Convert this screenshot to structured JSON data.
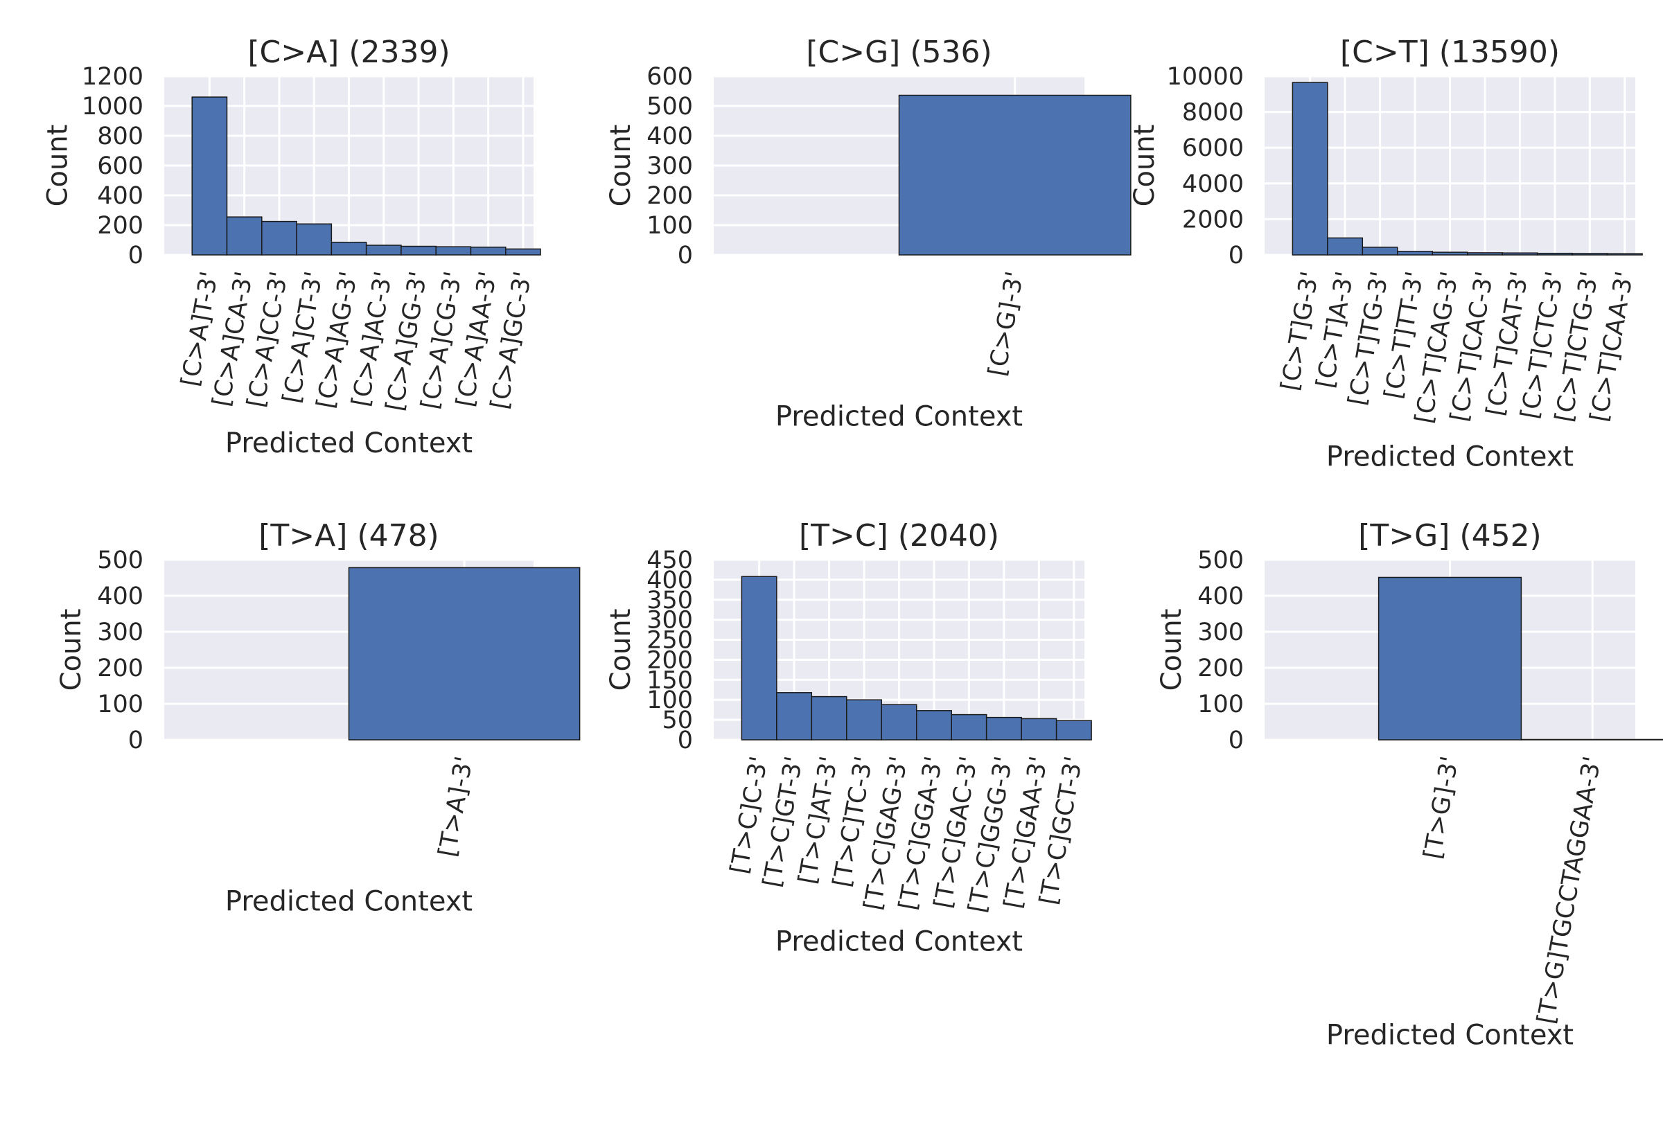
{
  "chart_data": [
    {
      "type": "bar",
      "title": "[C>A] (2339)",
      "xlabel": "Predicted Context",
      "ylabel": "Count",
      "ylim": [
        0,
        1200
      ],
      "yticks": [
        0,
        200,
        400,
        600,
        800,
        1000,
        1200
      ],
      "grid": true,
      "categories": [
        "[C>A]T-3'",
        "[C>A]CA-3'",
        "[C>A]CC-3'",
        "[C>A]CT-3'",
        "[C>A]AG-3'",
        "[C>A]AC-3'",
        "[C>A]GG-3'",
        "[C>A]CG-3'",
        "[C>A]AA-3'",
        "[C>A]GC-3'"
      ],
      "values": [
        1060,
        255,
        225,
        208,
        85,
        65,
        58,
        55,
        52,
        40
      ]
    },
    {
      "type": "bar",
      "title": "[C>G] (536)",
      "xlabel": "Predicted Context",
      "ylabel": "Count",
      "ylim": [
        0,
        600
      ],
      "yticks": [
        0,
        100,
        200,
        300,
        400,
        500,
        600
      ],
      "grid": true,
      "categories": [
        "[C>G]-3'"
      ],
      "values": [
        536
      ]
    },
    {
      "type": "bar",
      "title": "[C>T] (13590)",
      "xlabel": "Predicted Context",
      "ylabel": "Count",
      "ylim": [
        0,
        10000
      ],
      "yticks": [
        0,
        2000,
        4000,
        6000,
        8000,
        10000
      ],
      "grid": true,
      "categories": [
        "[C>T]G-3'",
        "[C>T]A-3'",
        "[C>T]TG-3'",
        "[C>T]TT-3'",
        "[C>T]CAG-3'",
        "[C>T]CAC-3'",
        "[C>T]CAT-3'",
        "[C>T]CTC-3'",
        "[C>T]CTG-3'",
        "[C>T]CAA-3'"
      ],
      "values": [
        9650,
        950,
        430,
        200,
        150,
        120,
        110,
        90,
        80,
        70
      ]
    },
    {
      "type": "bar",
      "title": "[T>A] (478)",
      "xlabel": "Predicted Context",
      "ylabel": "Count",
      "ylim": [
        0,
        500
      ],
      "yticks": [
        0,
        100,
        200,
        300,
        400,
        500
      ],
      "grid": true,
      "categories": [
        "[T>A]-3'"
      ],
      "values": [
        478
      ]
    },
    {
      "type": "bar",
      "title": "[T>C] (2040)",
      "xlabel": "Predicted Context",
      "ylabel": "Count",
      "ylim": [
        0,
        450
      ],
      "yticks": [
        0,
        50,
        100,
        150,
        200,
        250,
        300,
        350,
        400,
        450
      ],
      "grid": true,
      "categories": [
        "[T>C]C-3'",
        "[T>C]GT-3'",
        "[T>C]AT-3'",
        "[T>C]TC-3'",
        "[T>C]GAG-3'",
        "[T>C]GGA-3'",
        "[T>C]GAC-3'",
        "[T>C]GGG-3'",
        "[T>C]GAA-3'",
        "[T>C]GCT-3'"
      ],
      "values": [
        408,
        118,
        108,
        100,
        88,
        73,
        63,
        56,
        53,
        48
      ]
    },
    {
      "type": "bar",
      "title": "[T>G] (452)",
      "xlabel": "Predicted Context",
      "ylabel": "Count",
      "ylim": [
        0,
        500
      ],
      "yticks": [
        0,
        100,
        200,
        300,
        400,
        500
      ],
      "grid": true,
      "categories": [
        "[T>G]-3'",
        "[T>G]TGCCTAGGAA-3'"
      ],
      "values": [
        451,
        1
      ]
    }
  ],
  "colors": {
    "bar": "#4c72b0",
    "bar_edge": "#1a1a1a",
    "plot_bg": "#eaeaf2",
    "grid": "#ffffff"
  }
}
